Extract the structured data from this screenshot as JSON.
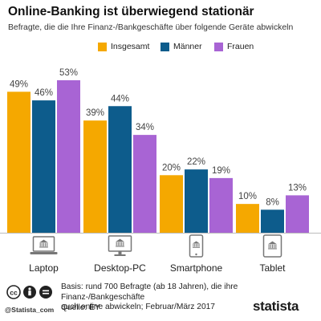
{
  "header": {
    "title": "Online-Banking ist überwiegend stationär",
    "subtitle": "Befragte, die die Ihre Finanz-/Bankgeschäfte über folgende Geräte abwickeln"
  },
  "colors": {
    "insgesamt": "#f5a800",
    "maenner": "#0d5c8c",
    "frauen": "#a864d4",
    "icon": "#777777",
    "axis": "#bbbbbb"
  },
  "chart_data": {
    "type": "bar",
    "categories": [
      "Laptop",
      "Desktop-PC",
      "Smartphone",
      "Tablet"
    ],
    "category_icons": [
      "laptop-bank-icon",
      "desktop-bank-icon",
      "smartphone-bank-icon",
      "tablet-bank-icon"
    ],
    "series": [
      {
        "name": "Insgesamt",
        "values": [
          49,
          39,
          20,
          10
        ]
      },
      {
        "name": "Männer",
        "values": [
          46,
          44,
          22,
          8
        ]
      },
      {
        "name": "Frauen",
        "values": [
          53,
          34,
          19,
          13
        ]
      }
    ],
    "value_suffix": "%",
    "ylim": [
      0,
      60
    ],
    "grid": false,
    "legend_position": "top-center"
  },
  "footer": {
    "note_line1": "Basis: rund 700 Befragte (ab 18 Jahren), die ihre Finanz-/Bankgeschäfte",
    "note_line2": "auch online abwickeln; Februar/März 2017",
    "source": "Quelle: EY",
    "handle": "@Statista_com",
    "logo": "statista",
    "cc_badge": "cc-by-nd-badge"
  }
}
